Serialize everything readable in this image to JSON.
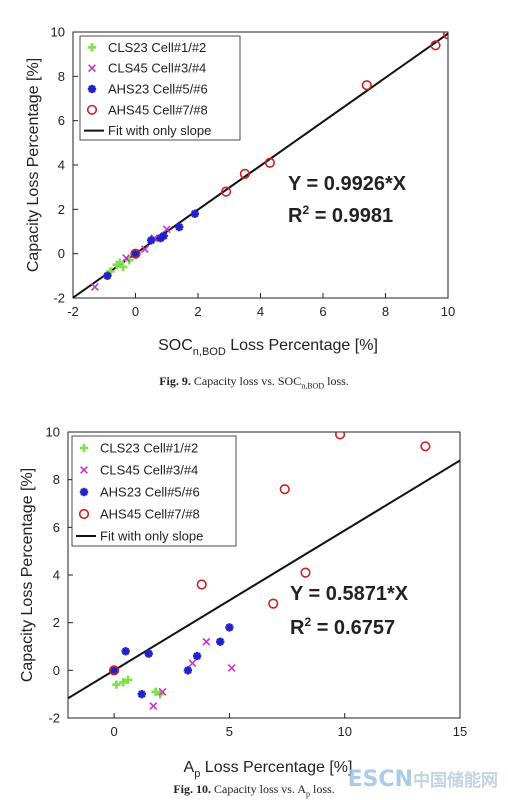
{
  "chart_data": [
    {
      "type": "scatter",
      "xlabel": "SOC",
      "xlabel_sub": "n,BOD",
      "xlabel_suffix": " Loss Percentage [%]",
      "ylabel": "Capacity Loss Percentage [%]",
      "xlim": [
        -2,
        10
      ],
      "ylim": [
        -2,
        10
      ],
      "xticks": [
        -2,
        0,
        2,
        4,
        6,
        8,
        10
      ],
      "yticks": [
        -2,
        0,
        2,
        4,
        6,
        8,
        10
      ],
      "grid": false,
      "legend_position": "top-left",
      "annotation_eq": "Y = 0.9926*X",
      "annotation_r2_prefix": "R",
      "annotation_r2_sup": "2",
      "annotation_r2_value": " = 0.9981",
      "series": [
        {
          "name": "CLS23 Cell#1/#2",
          "marker": "plus",
          "color": "#7fe04a",
          "points": [
            [
              -0.8,
              -0.8
            ],
            [
              -0.6,
              -0.5
            ],
            [
              -0.4,
              -0.6
            ],
            [
              -0.2,
              -0.3
            ],
            [
              -0.5,
              -0.4
            ]
          ]
        },
        {
          "name": "CLS45 Cell#3/#4",
          "marker": "x",
          "color": "#cc33cc",
          "points": [
            [
              -1.3,
              -1.5
            ],
            [
              0.3,
              0.2
            ],
            [
              1.0,
              1.1
            ],
            [
              0.6,
              0.7
            ],
            [
              -0.3,
              -0.2
            ]
          ]
        },
        {
          "name": "AHS23 Cell#5/#6",
          "marker": "star",
          "color": "#2222cc",
          "points": [
            [
              -0.9,
              -1.0
            ],
            [
              0.0,
              0.0
            ],
            [
              0.5,
              0.6
            ],
            [
              0.8,
              0.7
            ],
            [
              1.4,
              1.2
            ],
            [
              1.9,
              1.8
            ],
            [
              0.9,
              0.8
            ]
          ]
        },
        {
          "name": "AHS45 Cell#7/#8",
          "marker": "circle",
          "color": "#cc2222",
          "points": [
            [
              0.0,
              0.0
            ],
            [
              2.9,
              2.8
            ],
            [
              3.5,
              3.6
            ],
            [
              4.3,
              4.1
            ],
            [
              7.4,
              7.6
            ],
            [
              9.6,
              9.4
            ],
            [
              10.0,
              9.9
            ]
          ]
        }
      ],
      "fit": {
        "name": "Fit with only slope",
        "slope": 0.9926,
        "color": "#111111"
      }
    },
    {
      "type": "scatter",
      "xlabel": "A",
      "xlabel_sub": "p",
      "xlabel_suffix": " Loss Percentage [%]",
      "ylabel": "Capacity Loss Percentage [%]",
      "xlim": [
        -2,
        15
      ],
      "ylim": [
        -2,
        10
      ],
      "xticks": [
        0,
        5,
        10,
        15
      ],
      "yticks": [
        -2,
        0,
        2,
        4,
        6,
        8,
        10
      ],
      "grid": false,
      "legend_position": "top-left",
      "annotation_eq": "Y = 0.5871*X",
      "annotation_r2_prefix": "R",
      "annotation_r2_sup": "2",
      "annotation_r2_value": " = 0.6757",
      "series": [
        {
          "name": "CLS23 Cell#1/#2",
          "marker": "plus",
          "color": "#7fe04a",
          "points": [
            [
              0.1,
              -0.6
            ],
            [
              0.4,
              -0.5
            ],
            [
              0.6,
              -0.4
            ],
            [
              1.8,
              -0.9
            ],
            [
              2.0,
              -1.0
            ]
          ]
        },
        {
          "name": "CLS45 Cell#3/#4",
          "marker": "x",
          "color": "#cc33cc",
          "points": [
            [
              1.7,
              -1.5
            ],
            [
              2.1,
              -0.9
            ],
            [
              3.4,
              0.3
            ],
            [
              4.0,
              1.2
            ],
            [
              5.1,
              0.1
            ]
          ]
        },
        {
          "name": "AHS23 Cell#5/#6",
          "marker": "star",
          "color": "#2222cc",
          "points": [
            [
              0.0,
              0.0
            ],
            [
              0.5,
              0.8
            ],
            [
              1.2,
              -1.0
            ],
            [
              1.5,
              0.7
            ],
            [
              3.2,
              0.0
            ],
            [
              3.6,
              0.6
            ],
            [
              4.6,
              1.2
            ],
            [
              5.0,
              1.8
            ]
          ]
        },
        {
          "name": "AHS45 Cell#7/#8",
          "marker": "circle",
          "color": "#cc2222",
          "points": [
            [
              0.0,
              0.0
            ],
            [
              3.8,
              3.6
            ],
            [
              6.9,
              2.8
            ],
            [
              7.4,
              7.6
            ],
            [
              8.3,
              4.1
            ],
            [
              9.8,
              9.9
            ],
            [
              13.5,
              9.4
            ]
          ]
        }
      ],
      "fit": {
        "name": "Fit with only slope",
        "slope": 0.5871,
        "color": "#111111"
      }
    }
  ],
  "captions": {
    "fig9_prefix": "Fig. 9.",
    "fig9_text": " Capacity loss vs. SOC",
    "fig9_sub": "n,BOD",
    "fig9_suffix": " loss.",
    "fig10_prefix": "Fig. 10.",
    "fig10_text": " Capacity loss vs. A",
    "fig10_sub": "p",
    "fig10_suffix": " loss."
  },
  "watermark": {
    "latin": "ESCN",
    "cjk": "中国储能网"
  }
}
